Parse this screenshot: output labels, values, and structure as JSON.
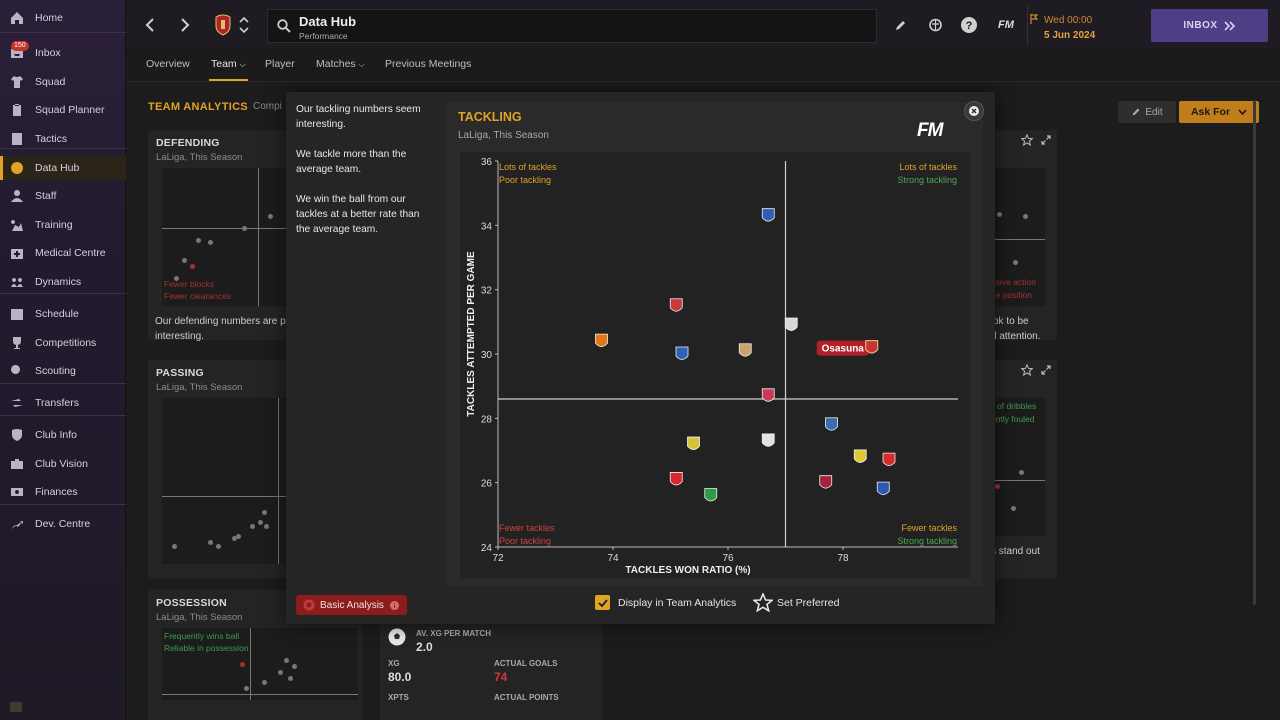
{
  "sidebar": {
    "items": [
      {
        "label": "Home",
        "icon": "home-icon"
      },
      {
        "label": "Inbox",
        "icon": "inbox-icon",
        "badge": "150"
      },
      {
        "label": "Squad",
        "icon": "shirt-icon"
      },
      {
        "label": "Squad Planner",
        "icon": "clipboard-icon"
      },
      {
        "label": "Tactics",
        "icon": "tactics-icon"
      },
      {
        "label": "Data Hub",
        "icon": "data-hub-icon",
        "active": true
      },
      {
        "label": "Staff",
        "icon": "staff-icon"
      },
      {
        "label": "Training",
        "icon": "training-icon"
      },
      {
        "label": "Medical Centre",
        "icon": "medical-icon"
      },
      {
        "label": "Dynamics",
        "icon": "dynamics-icon"
      },
      {
        "label": "Schedule",
        "icon": "calendar-icon"
      },
      {
        "label": "Competitions",
        "icon": "trophy-icon"
      },
      {
        "label": "Scouting",
        "icon": "scouting-icon"
      },
      {
        "label": "Transfers",
        "icon": "transfers-icon"
      },
      {
        "label": "Club Info",
        "icon": "shield-icon"
      },
      {
        "label": "Club Vision",
        "icon": "vision-icon"
      },
      {
        "label": "Finances",
        "icon": "finances-icon"
      },
      {
        "label": "Dev. Centre",
        "icon": "dev-centre-icon"
      }
    ]
  },
  "header": {
    "search_title": "Data Hub",
    "search_sub": "Performance",
    "date_line1": "Wed 00:00",
    "date_line2": "5 Jun 2024",
    "inbox_label": "INBOX",
    "fm_label": "FM"
  },
  "subtabs": [
    "Overview",
    "Team",
    "Player",
    "Matches",
    "Previous Meetings"
  ],
  "main": {
    "title": "TEAM ANALYTICS",
    "subtitle": "Compi",
    "edit_label": "Edit",
    "askfor_label": "Ask For"
  },
  "panels": {
    "defending": {
      "title": "DEFENDING",
      "sub": "LaLiga, This Season",
      "q1": "Fewer blocks",
      "q2": "Fewer clearances",
      "text1": "Our defending numbers are p",
      "text2": "interesting."
    },
    "passing": {
      "title": "PASSING",
      "sub": "LaLiga, This Season"
    },
    "possession": {
      "title": "POSSESSION",
      "sub": "LaLiga, This Season",
      "q1": "Frequently wins ball",
      "q2": "Reliable in possession"
    },
    "right_top": {
      "l1": "nsive action",
      "l2": "ne position",
      "t1": "ok to be",
      "t2": "d attention."
    },
    "right_mid": {
      "l1": "of dribbles",
      "l2": "ently fouled",
      "t1": "s stand out"
    },
    "xg": {
      "h1": "AV. XG PER MATCH",
      "v1": "2.0",
      "h2": "XG",
      "v2": "80.0",
      "h3": "ACTUAL GOALS",
      "v3": "74",
      "h4": "XPTS",
      "h5": "ACTUAL POINTS"
    }
  },
  "modal": {
    "insights": [
      "Our tackling numbers seem interesting.",
      "We tackle more than the average team.",
      "We win the ball from our tackles at a better rate than the average team."
    ],
    "chart_title": "TACKLING",
    "chart_sub": "LaLiga, This Season",
    "logo": "FM",
    "basic_analysis": "Basic Analysis",
    "display_label": "Display in Team Analytics",
    "preferred_label": "Set Preferred"
  },
  "chart_data": {
    "type": "scatter",
    "xlabel": "TACKLES WON RATIO (%)",
    "ylabel": "TACKLES ATTEMPTED PER GAME",
    "xlim": [
      72,
      80
    ],
    "ylim": [
      24,
      36
    ],
    "xticks": [
      72,
      74,
      76,
      78
    ],
    "yticks": [
      24,
      26,
      28,
      30,
      32,
      34,
      36
    ],
    "avg_x": 77.0,
    "avg_y": 28.6,
    "quadrants": {
      "top_left": [
        "Lots of tackles",
        "Poor tackling"
      ],
      "top_right": [
        "Lots of tackles",
        "Strong tackling"
      ],
      "bottom_left": [
        "Fewer tackles",
        "Poor tackling"
      ],
      "bottom_right": [
        "Fewer tackles",
        "Strong tackling"
      ]
    },
    "highlight_label": "Osasuna",
    "points": [
      {
        "x": 76.7,
        "y": 34.3,
        "color": "#2f5fb5"
      },
      {
        "x": 75.1,
        "y": 31.5,
        "color": "#c83a3a"
      },
      {
        "x": 77.1,
        "y": 30.9,
        "color": "#d9d9d9"
      },
      {
        "x": 73.8,
        "y": 30.4,
        "color": "#e07a18"
      },
      {
        "x": 75.2,
        "y": 30.0,
        "color": "#2d62b8"
      },
      {
        "x": 76.3,
        "y": 30.1,
        "color": "#c9a46a"
      },
      {
        "x": 78.5,
        "y": 30.2,
        "color": "#b02028",
        "highlight": true
      },
      {
        "x": 76.7,
        "y": 28.7,
        "color": "#c83a55"
      },
      {
        "x": 77.8,
        "y": 27.8,
        "color": "#3a6cb0"
      },
      {
        "x": 75.4,
        "y": 27.2,
        "color": "#d8c23a"
      },
      {
        "x": 76.7,
        "y": 27.3,
        "color": "#e2e2e2"
      },
      {
        "x": 78.3,
        "y": 26.8,
        "color": "#e0c830"
      },
      {
        "x": 78.8,
        "y": 26.7,
        "color": "#d62c2c"
      },
      {
        "x": 75.1,
        "y": 26.1,
        "color": "#d8282e"
      },
      {
        "x": 77.7,
        "y": 26.0,
        "color": "#a22438"
      },
      {
        "x": 75.7,
        "y": 25.6,
        "color": "#2f9a48"
      },
      {
        "x": 78.7,
        "y": 25.8,
        "color": "#2c58b0"
      }
    ]
  }
}
